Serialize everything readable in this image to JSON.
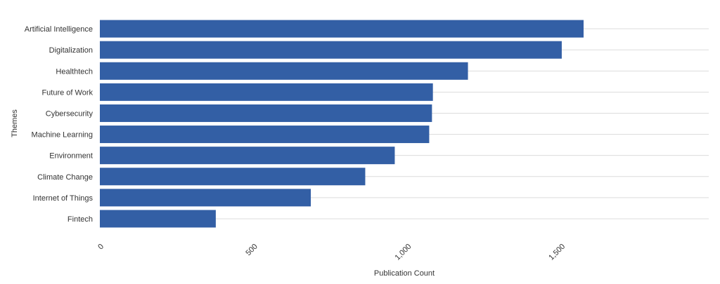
{
  "chart_data": {
    "type": "bar",
    "orientation": "horizontal",
    "categories": [
      "Artificial Intelligence",
      "Digitalization",
      "Healthtech",
      "Future of Work",
      "Cybersecurity",
      "Machine Learning",
      "Environment",
      "Climate Change",
      "Internet of Things",
      "Fintech"
    ],
    "values": [
      1573,
      1502,
      1197,
      1083,
      1080,
      1071,
      959,
      863,
      686,
      377
    ],
    "xlabel": "Publication Count",
    "ylabel": "Themes",
    "xlim": [
      0,
      1980
    ],
    "xticks": [
      0,
      500,
      1000,
      1500
    ],
    "xtick_labels": [
      "0",
      "500",
      "1,000",
      "1,500"
    ],
    "bar_color": "#335fa5",
    "grid": "horizontal gridlines"
  }
}
